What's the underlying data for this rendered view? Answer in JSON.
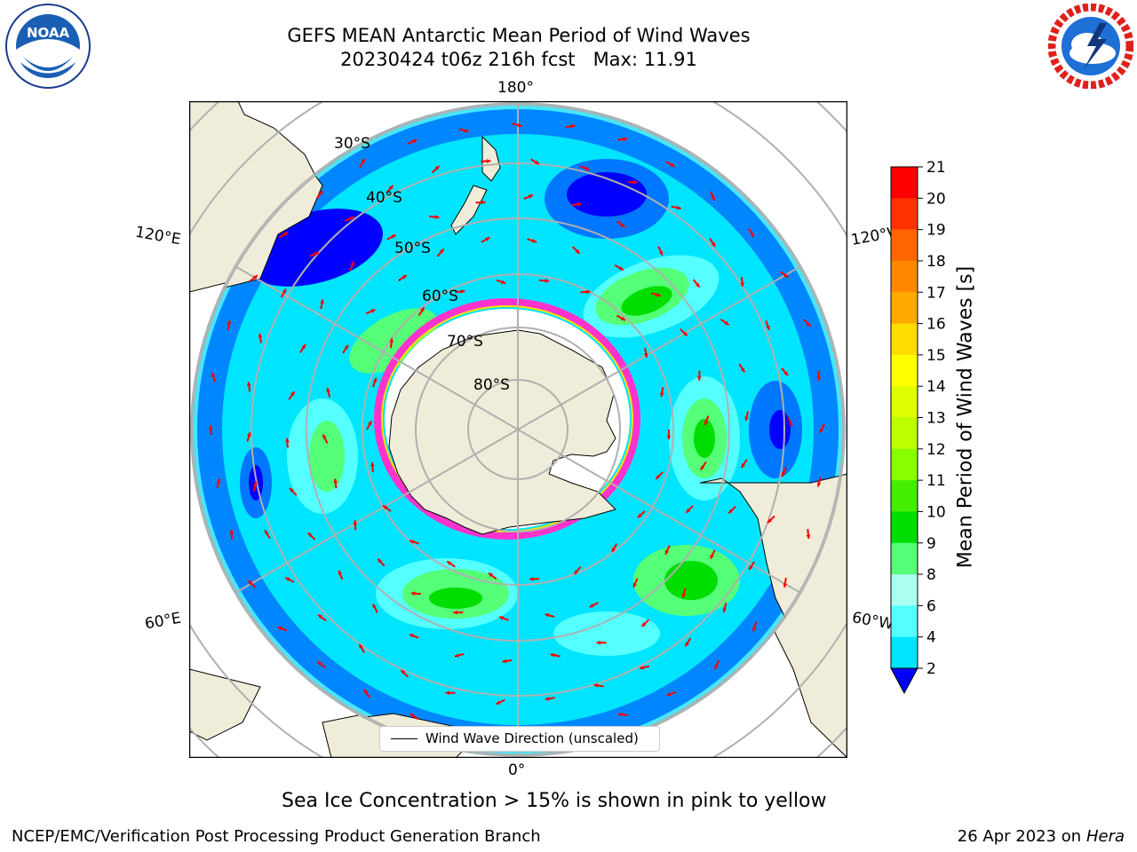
{
  "title": {
    "line1": "GEFS MEAN Antarctic Mean Period of Wind Waves",
    "line2": "20230424 t06z 216h fcst   Max: 11.91"
  },
  "logos": {
    "left": {
      "icon": "noaa-logo",
      "text": "NOAA"
    },
    "right": {
      "icon": "nws-logo"
    }
  },
  "map": {
    "projection": "south-polar-stereographic",
    "lon_labels": [
      "180°",
      "120°E",
      "120°W",
      "60°E",
      "60°W",
      "0°"
    ],
    "lat_labels": [
      "30°S",
      "40°S",
      "50°S",
      "60°S",
      "70°S",
      "80°S"
    ],
    "legend": "Wind Wave Direction (unscaled)",
    "land_color": "#efecd9",
    "ice_edge_color": "#ff33cc",
    "arrow_color": "#ff0000"
  },
  "colorbar": {
    "label": "Mean Period of Wind Waves [s]",
    "ticks": [
      "21",
      "20",
      "19",
      "18",
      "17",
      "16",
      "15",
      "14",
      "13",
      "12",
      "11",
      "10",
      "9",
      "8",
      "6",
      "4",
      "2"
    ],
    "colors": [
      "#ff0000",
      "#ff3300",
      "#ff6600",
      "#ff8800",
      "#ffaa00",
      "#ffdd00",
      "#ffff00",
      "#ddff00",
      "#bbff00",
      "#88ff00",
      "#44ee00",
      "#00dd00",
      "#55ff77",
      "#aaffee",
      "#55ffff",
      "#00e5ff",
      "#0077ff"
    ],
    "under_color": "#0000ff"
  },
  "note": "Sea Ice Concentration > 15% is shown in pink to yellow",
  "footer": {
    "left": "NCEP/EMC/Verification Post Processing Product Generation Branch",
    "right_prefix": "26 Apr 2023 on ",
    "right_machine": "Hera"
  }
}
